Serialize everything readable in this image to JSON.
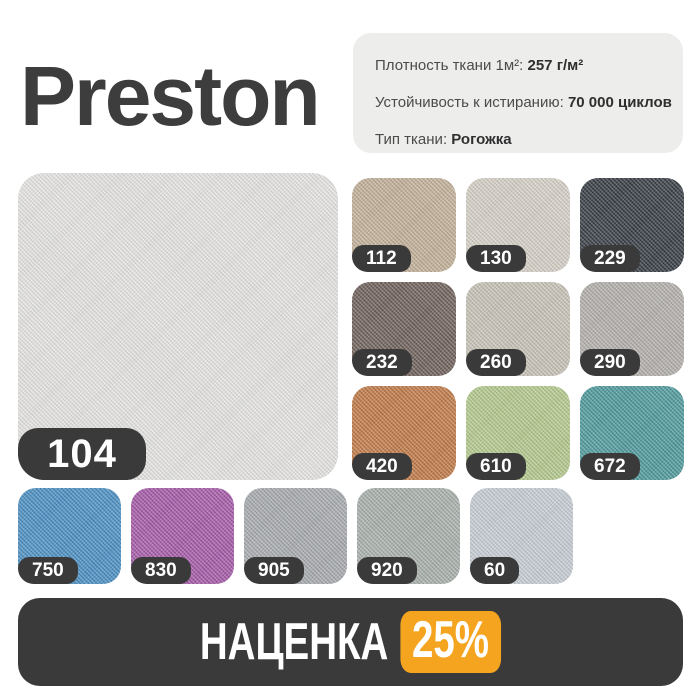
{
  "title": "Preston",
  "theme": {
    "dark": "#3a3a3a",
    "accent_orange": "#f5a41f",
    "specs_background": "#ededec",
    "page_background": "#ffffff"
  },
  "specs": {
    "rows": [
      {
        "label": "Плотность ткани 1м²:",
        "value": "257 г/м²"
      },
      {
        "label": "Устойчивость к истиранию:",
        "value": "70 000 циклов"
      },
      {
        "label": "Тип ткани:",
        "value": "Рогожка"
      }
    ]
  },
  "main_swatch": {
    "code": "104",
    "color": "#e6e5e3"
  },
  "swatches": {
    "right": [
      {
        "code": "112",
        "color": "#c3b199"
      },
      {
        "code": "130",
        "color": "#d6d1c7"
      },
      {
        "code": "229",
        "color": "#373d44"
      },
      {
        "code": "232",
        "color": "#6f615b"
      },
      {
        "code": "260",
        "color": "#c7c3b7"
      },
      {
        "code": "290",
        "color": "#b3b0ad"
      },
      {
        "code": "420",
        "color": "#c17a48"
      },
      {
        "code": "610",
        "color": "#b4c98d"
      },
      {
        "code": "672",
        "color": "#4f9a9d"
      }
    ],
    "bottom": [
      {
        "code": "750",
        "color": "#4b8fc3"
      },
      {
        "code": "830",
        "color": "#a55aa8"
      },
      {
        "code": "905",
        "color": "#a8abaf"
      },
      {
        "code": "920",
        "color": "#a9b1ac"
      },
      {
        "code": "60",
        "color": "#c6cdd4"
      }
    ]
  },
  "banner": {
    "label": "НАЦЕНКА",
    "badge": "25%"
  }
}
